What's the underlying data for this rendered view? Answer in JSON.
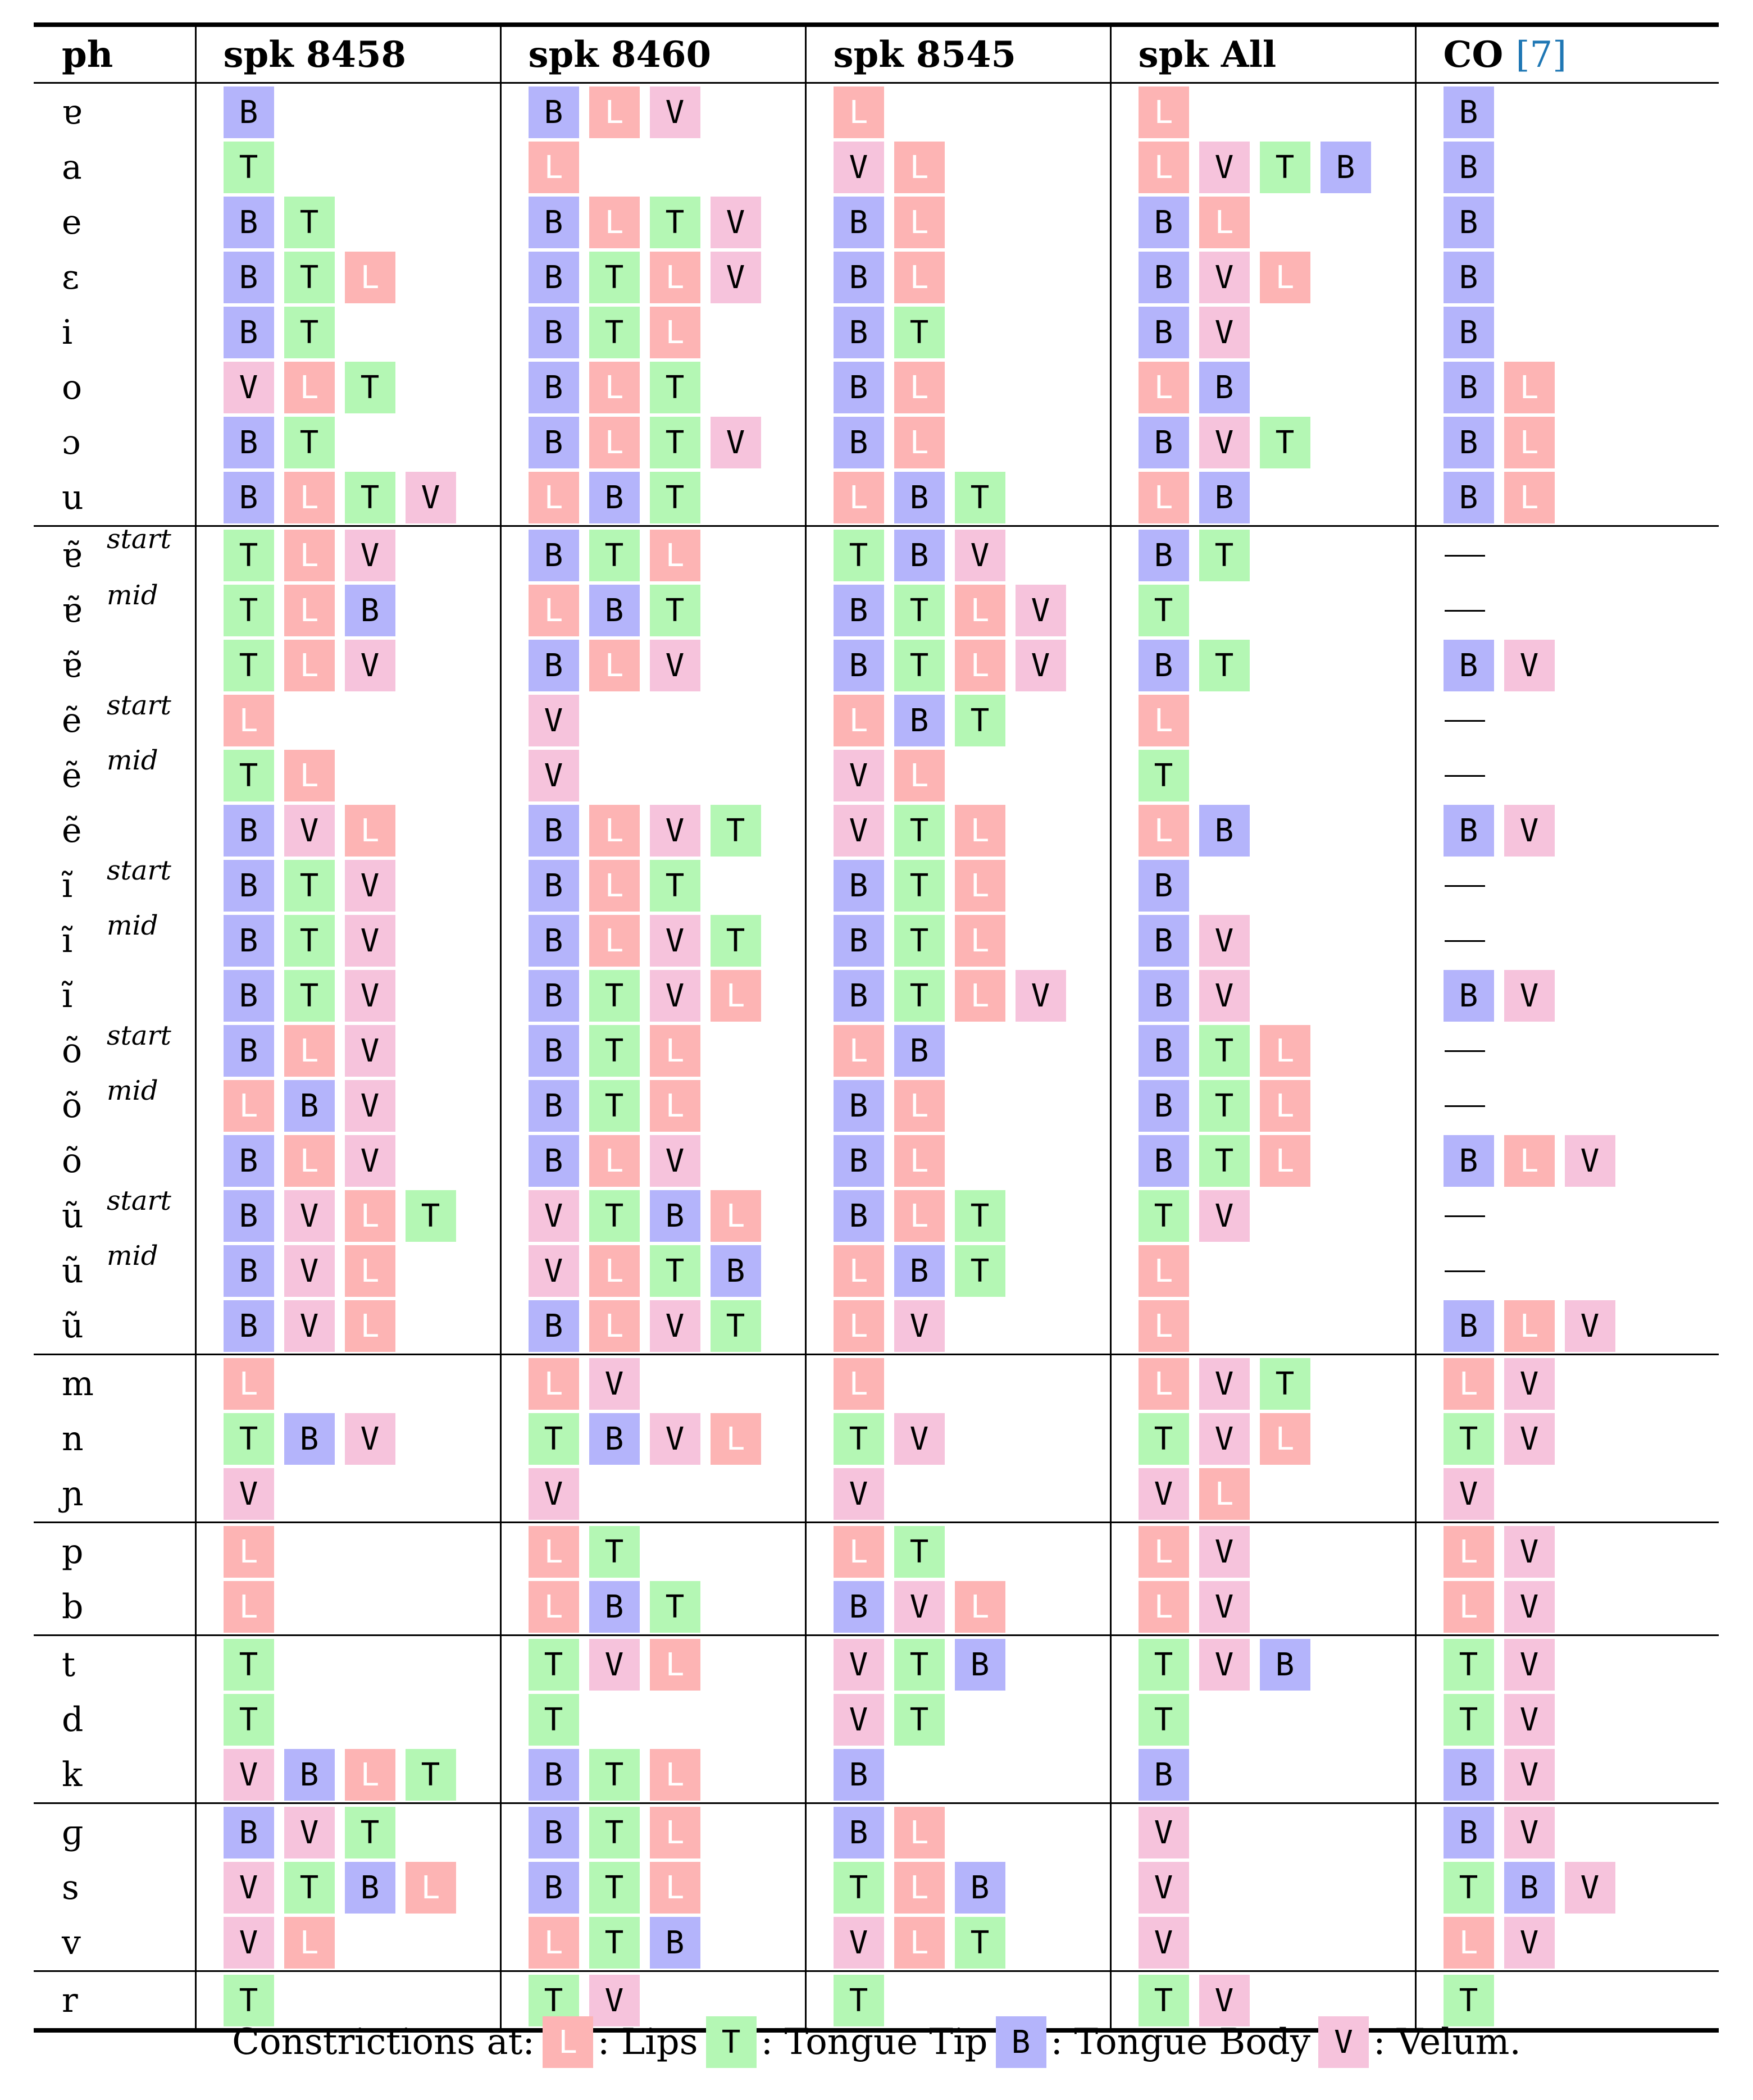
{
  "headers": {
    "ph": "ph",
    "s1": "spk 8458",
    "s2": "spk 8460",
    "s3": "spk 8545",
    "s4": "spk All",
    "co": "CO ",
    "co_cite": "[7]"
  },
  "dash": "—",
  "legend": {
    "prefix": "Constrictions at:",
    "items": [
      {
        "code": "L",
        "label": ": Lips"
      },
      {
        "code": "T",
        "label": ": Tongue Tip"
      },
      {
        "code": "B",
        "label": ": Tongue Body"
      },
      {
        "code": "V",
        "label": ": Velum."
      }
    ]
  },
  "groups": [
    {
      "rows": [
        {
          "ph": "ɐ",
          "tag": "",
          "cells": [
            [
              "B"
            ],
            [
              "B",
              "L",
              "V"
            ],
            [
              "L"
            ],
            [
              "L"
            ],
            [
              "B"
            ]
          ]
        },
        {
          "ph": "a",
          "tag": "",
          "cells": [
            [
              "T"
            ],
            [
              "L"
            ],
            [
              "V",
              "L"
            ],
            [
              "L",
              "V",
              "T",
              "B"
            ],
            [
              "B"
            ]
          ]
        },
        {
          "ph": "e",
          "tag": "",
          "cells": [
            [
              "B",
              "T"
            ],
            [
              "B",
              "L",
              "T",
              "V"
            ],
            [
              "B",
              "L"
            ],
            [
              "B",
              "L"
            ],
            [
              "B"
            ]
          ]
        },
        {
          "ph": "ɛ",
          "tag": "",
          "cells": [
            [
              "B",
              "T",
              "L"
            ],
            [
              "B",
              "T",
              "L",
              "V"
            ],
            [
              "B",
              "L"
            ],
            [
              "B",
              "V",
              "L"
            ],
            [
              "B"
            ]
          ]
        },
        {
          "ph": "i",
          "tag": "",
          "cells": [
            [
              "B",
              "T"
            ],
            [
              "B",
              "T",
              "L"
            ],
            [
              "B",
              "T"
            ],
            [
              "B",
              "V"
            ],
            [
              "B"
            ]
          ]
        },
        {
          "ph": "o",
          "tag": "",
          "cells": [
            [
              "V",
              "L",
              "T"
            ],
            [
              "B",
              "L",
              "T"
            ],
            [
              "B",
              "L"
            ],
            [
              "L",
              "B"
            ],
            [
              "B",
              "L"
            ]
          ]
        },
        {
          "ph": "ɔ",
          "tag": "",
          "cells": [
            [
              "B",
              "T"
            ],
            [
              "B",
              "L",
              "T",
              "V"
            ],
            [
              "B",
              "L"
            ],
            [
              "B",
              "V",
              "T"
            ],
            [
              "B",
              "L"
            ]
          ]
        },
        {
          "ph": "u",
          "tag": "",
          "cells": [
            [
              "B",
              "L",
              "T",
              "V"
            ],
            [
              "L",
              "B",
              "T"
            ],
            [
              "L",
              "B",
              "T"
            ],
            [
              "L",
              "B"
            ],
            [
              "B",
              "L"
            ]
          ]
        }
      ]
    },
    {
      "rows": [
        {
          "ph": "ɐ̃",
          "tag": "start",
          "cells": [
            [
              "T",
              "L",
              "V"
            ],
            [
              "B",
              "T",
              "L"
            ],
            [
              "T",
              "B",
              "V"
            ],
            [
              "B",
              "T"
            ],
            "dash"
          ]
        },
        {
          "ph": "ɐ̃",
          "tag": "mid",
          "cells": [
            [
              "T",
              "L",
              "B"
            ],
            [
              "L",
              "B",
              "T"
            ],
            [
              "B",
              "T",
              "L",
              "V"
            ],
            [
              "T"
            ],
            "dash"
          ]
        },
        {
          "ph": "ɐ̃",
          "tag": "",
          "cells": [
            [
              "T",
              "L",
              "V"
            ],
            [
              "B",
              "L",
              "V"
            ],
            [
              "B",
              "T",
              "L",
              "V"
            ],
            [
              "B",
              "T"
            ],
            [
              "B",
              "V"
            ]
          ]
        },
        {
          "ph": "ẽ",
          "tag": "start",
          "cells": [
            [
              "L"
            ],
            [
              "V"
            ],
            [
              "L",
              "B",
              "T"
            ],
            [
              "L"
            ],
            "dash"
          ]
        },
        {
          "ph": "ẽ",
          "tag": "mid",
          "cells": [
            [
              "T",
              "L"
            ],
            [
              "V"
            ],
            [
              "V",
              "L"
            ],
            [
              "T"
            ],
            "dash"
          ]
        },
        {
          "ph": "ẽ",
          "tag": "",
          "cells": [
            [
              "B",
              "V",
              "L"
            ],
            [
              "B",
              "L",
              "V",
              "T"
            ],
            [
              "V",
              "T",
              "L"
            ],
            [
              "L",
              "B"
            ],
            [
              "B",
              "V"
            ]
          ]
        },
        {
          "ph": "ĩ",
          "tag": "start",
          "cells": [
            [
              "B",
              "T",
              "V"
            ],
            [
              "B",
              "L",
              "T"
            ],
            [
              "B",
              "T",
              "L"
            ],
            [
              "B"
            ],
            "dash"
          ]
        },
        {
          "ph": "ĩ",
          "tag": "mid",
          "cells": [
            [
              "B",
              "T",
              "V"
            ],
            [
              "B",
              "L",
              "V",
              "T"
            ],
            [
              "B",
              "T",
              "L"
            ],
            [
              "B",
              "V"
            ],
            "dash"
          ]
        },
        {
          "ph": "ĩ",
          "tag": "",
          "cells": [
            [
              "B",
              "T",
              "V"
            ],
            [
              "B",
              "T",
              "V",
              "L"
            ],
            [
              "B",
              "T",
              "L",
              "V"
            ],
            [
              "B",
              "V"
            ],
            [
              "B",
              "V"
            ]
          ]
        },
        {
          "ph": "õ",
          "tag": "start",
          "cells": [
            [
              "B",
              "L",
              "V"
            ],
            [
              "B",
              "T",
              "L"
            ],
            [
              "L",
              "B"
            ],
            [
              "B",
              "T",
              "L"
            ],
            "dash"
          ]
        },
        {
          "ph": "õ",
          "tag": "mid",
          "cells": [
            [
              "L",
              "B",
              "V"
            ],
            [
              "B",
              "T",
              "L"
            ],
            [
              "B",
              "L"
            ],
            [
              "B",
              "T",
              "L"
            ],
            "dash"
          ]
        },
        {
          "ph": "õ",
          "tag": "",
          "cells": [
            [
              "B",
              "L",
              "V"
            ],
            [
              "B",
              "L",
              "V"
            ],
            [
              "B",
              "L"
            ],
            [
              "B",
              "T",
              "L"
            ],
            [
              "B",
              "L",
              "V"
            ]
          ]
        },
        {
          "ph": "ũ",
          "tag": "start",
          "cells": [
            [
              "B",
              "V",
              "L",
              "T"
            ],
            [
              "V",
              "T",
              "B",
              "L"
            ],
            [
              "B",
              "L",
              "T"
            ],
            [
              "T",
              "V"
            ],
            "dash"
          ]
        },
        {
          "ph": "ũ",
          "tag": "mid",
          "cells": [
            [
              "B",
              "V",
              "L"
            ],
            [
              "V",
              "L",
              "T",
              "B"
            ],
            [
              "L",
              "B",
              "T"
            ],
            [
              "L"
            ],
            "dash"
          ]
        },
        {
          "ph": "ũ",
          "tag": "",
          "cells": [
            [
              "B",
              "V",
              "L"
            ],
            [
              "B",
              "L",
              "V",
              "T"
            ],
            [
              "L",
              "V"
            ],
            [
              "L"
            ],
            [
              "B",
              "L",
              "V"
            ]
          ]
        }
      ]
    },
    {
      "rows": [
        {
          "ph": "m",
          "tag": "",
          "cells": [
            [
              "L"
            ],
            [
              "L",
              "V"
            ],
            [
              "L"
            ],
            [
              "L",
              "V",
              "T"
            ],
            [
              "L",
              "V"
            ]
          ]
        },
        {
          "ph": "n",
          "tag": "",
          "cells": [
            [
              "T",
              "B",
              "V"
            ],
            [
              "T",
              "B",
              "V",
              "L"
            ],
            [
              "T",
              "V"
            ],
            [
              "T",
              "V",
              "L"
            ],
            [
              "T",
              "V"
            ]
          ]
        },
        {
          "ph": "ɲ",
          "tag": "",
          "cells": [
            [
              "V"
            ],
            [
              "V"
            ],
            [
              "V"
            ],
            [
              "V",
              "L"
            ],
            [
              "V"
            ]
          ]
        }
      ]
    },
    {
      "rows": [
        {
          "ph": "p",
          "tag": "",
          "cells": [
            [
              "L"
            ],
            [
              "L",
              "T"
            ],
            [
              "L",
              "T"
            ],
            [
              "L",
              "V"
            ],
            [
              "L",
              "V"
            ]
          ]
        },
        {
          "ph": "b",
          "tag": "",
          "cells": [
            [
              "L"
            ],
            [
              "L",
              "B",
              "T"
            ],
            [
              "B",
              "V",
              "L"
            ],
            [
              "L",
              "V"
            ],
            [
              "L",
              "V"
            ]
          ]
        }
      ]
    },
    {
      "rows": [
        {
          "ph": "t",
          "tag": "",
          "cells": [
            [
              "T"
            ],
            [
              "T",
              "V",
              "L"
            ],
            [
              "V",
              "T",
              "B"
            ],
            [
              "T",
              "V",
              "B"
            ],
            [
              "T",
              "V"
            ]
          ]
        },
        {
          "ph": "d",
          "tag": "",
          "cells": [
            [
              "T"
            ],
            [
              "T"
            ],
            [
              "V",
              "T"
            ],
            [
              "T"
            ],
            [
              "T",
              "V"
            ]
          ]
        },
        {
          "ph": "k",
          "tag": "",
          "cells": [
            [
              "V",
              "B",
              "L",
              "T"
            ],
            [
              "B",
              "T",
              "L"
            ],
            [
              "B"
            ],
            [
              "B"
            ],
            [
              "B",
              "V"
            ]
          ]
        }
      ]
    },
    {
      "rows": [
        {
          "ph": "ɡ",
          "tag": "",
          "cells": [
            [
              "B",
              "V",
              "T"
            ],
            [
              "B",
              "T",
              "L"
            ],
            [
              "B",
              "L"
            ],
            [
              "V"
            ],
            [
              "B",
              "V"
            ]
          ]
        },
        {
          "ph": "s",
          "tag": "",
          "cells": [
            [
              "V",
              "T",
              "B",
              "L"
            ],
            [
              "B",
              "T",
              "L"
            ],
            [
              "T",
              "L",
              "B"
            ],
            [
              "V"
            ],
            [
              "T",
              "B",
              "V"
            ]
          ]
        },
        {
          "ph": "v",
          "tag": "",
          "cells": [
            [
              "V",
              "L"
            ],
            [
              "L",
              "T",
              "B"
            ],
            [
              "V",
              "L",
              "T"
            ],
            [
              "V"
            ],
            [
              "L",
              "V"
            ]
          ]
        }
      ]
    },
    {
      "rows": [
        {
          "ph": "r",
          "tag": "",
          "cells": [
            [
              "T"
            ],
            [
              "T",
              "V"
            ],
            [
              "T"
            ],
            [
              "T",
              "V"
            ],
            [
              "T"
            ]
          ]
        }
      ]
    }
  ]
}
